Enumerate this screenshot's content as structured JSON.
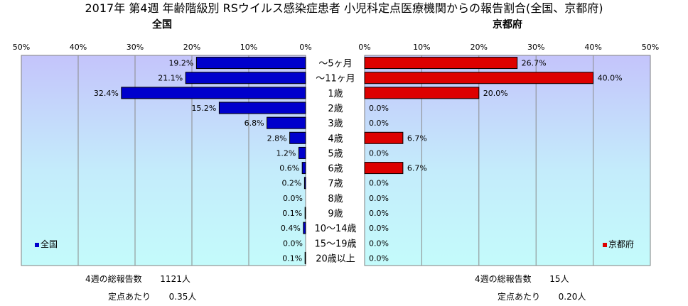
{
  "title": "2017年 第4週 年齢階級別 RSウイルス感染症患者 小児科定点医療機関からの報告割合(全国、京都府)",
  "colors": {
    "national_bar": "#0000cc",
    "kyoto_bar": "#dd0000"
  },
  "chart_data": [
    {
      "type": "bar",
      "orientation": "horizontal",
      "direction": "leftward",
      "title": "全国",
      "categories": [
        "～5ヶ月",
        "～11ヶ月",
        "1歳",
        "2歳",
        "3歳",
        "4歳",
        "5歳",
        "6歳",
        "7歳",
        "8歳",
        "9歳",
        "10～14歳",
        "15～19歳",
        "20歳以上"
      ],
      "series": [
        {
          "name": "全国",
          "values": [
            19.2,
            21.1,
            32.4,
            15.2,
            6.8,
            2.8,
            1.2,
            0.6,
            0.2,
            0.0,
            0.1,
            0.4,
            0.0,
            0.1
          ],
          "labels": [
            "19.2%",
            "21.1%",
            "32.4%",
            "15.2%",
            "6.8%",
            "2.8%",
            "1.2%",
            "0.6%",
            "0.2%",
            "0.0%",
            "0.1%",
            "0.4%",
            "0.0%",
            "0.1%"
          ]
        }
      ],
      "xlim": [
        0,
        50
      ],
      "ticks": [
        "50%",
        "40%",
        "30%",
        "20%",
        "10%",
        "0%"
      ],
      "grid": true,
      "legend": "bottom-left"
    },
    {
      "type": "bar",
      "orientation": "horizontal",
      "direction": "rightward",
      "title": "京都府",
      "categories": [
        "～5ヶ月",
        "～11ヶ月",
        "1歳",
        "2歳",
        "3歳",
        "4歳",
        "5歳",
        "6歳",
        "7歳",
        "8歳",
        "9歳",
        "10～14歳",
        "15～19歳",
        "20歳以上"
      ],
      "series": [
        {
          "name": "京都府",
          "values": [
            26.7,
            40.0,
            20.0,
            0.0,
            0.0,
            6.7,
            0.0,
            6.7,
            0.0,
            0.0,
            0.0,
            0.0,
            0.0,
            0.0
          ],
          "labels": [
            "26.7%",
            "40.0%",
            "20.0%",
            "0.0%",
            "0.0%",
            "6.7%",
            "0.0%",
            "6.7%",
            "0.0%",
            "0.0%",
            "0.0%",
            "0.0%",
            "0.0%",
            "0.0%"
          ]
        }
      ],
      "xlim": [
        0,
        50
      ],
      "ticks": [
        "0%",
        "10%",
        "20%",
        "30%",
        "40%",
        "50%"
      ],
      "grid": true,
      "legend": "bottom-right"
    }
  ],
  "summary": {
    "national": {
      "total_label": "4週の総報告数",
      "total_value": "1121人",
      "per_label": "定点あたり",
      "per_value": "0.35人"
    },
    "kyoto": {
      "total_label": "4週の総報告数",
      "total_value": "15人",
      "per_label": "定点あたり",
      "per_value": "0.20人"
    }
  }
}
